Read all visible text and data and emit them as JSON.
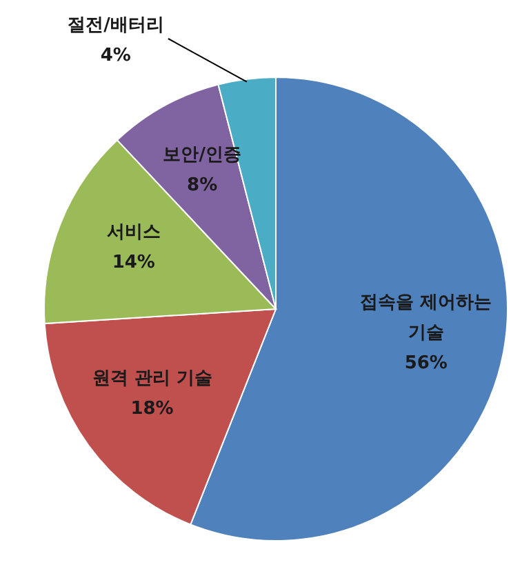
{
  "chart_data": {
    "type": "pie",
    "categories": [
      "접속을 제어하는 기술",
      "원격 관리 기술",
      "서비스",
      "보안/인증",
      "절전/배터리"
    ],
    "values": [
      56,
      18,
      14,
      8,
      4
    ],
    "colors": [
      "#4f81bd",
      "#c0504d",
      "#9bbb59",
      "#8064a2",
      "#4bacc6"
    ],
    "value_labels": [
      "56%",
      "18%",
      "14%",
      "8%",
      "4%"
    ]
  }
}
